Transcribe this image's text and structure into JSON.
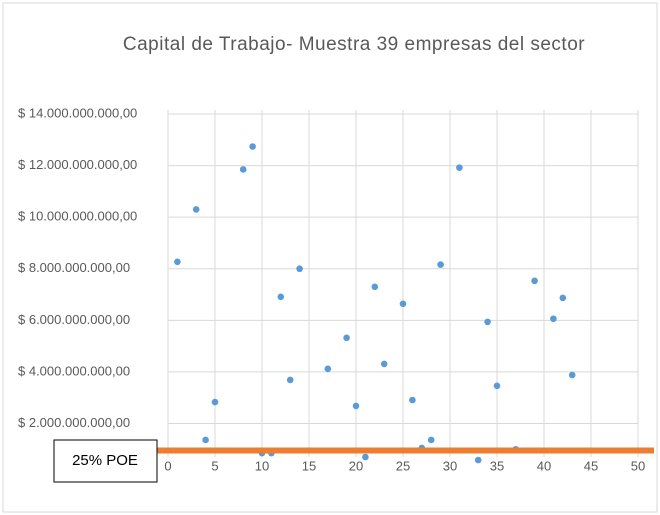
{
  "chart_data": {
    "type": "scatter",
    "title": "Capital de Trabajo- Muestra 39 empresas del sector",
    "color": "#5b9bd5",
    "x": [
      1,
      3,
      4,
      5,
      8,
      9,
      10,
      11,
      12,
      13,
      14,
      17,
      19,
      20,
      21,
      22,
      23,
      25,
      26,
      27,
      28,
      29,
      31,
      33,
      34,
      35,
      37,
      39,
      41,
      42,
      43
    ],
    "values": [
      8270000000,
      10300000000,
      1360000000,
      2830000000,
      11850000000,
      12740000000,
      850000000,
      850000000,
      6910000000,
      3690000000,
      8000000000,
      4120000000,
      5320000000,
      2680000000,
      700000000,
      7300000000,
      4310000000,
      6640000000,
      2910000000,
      1050000000,
      1360000000,
      8160000000,
      11920000000,
      580000000,
      5940000000,
      3460000000,
      1000000000,
      7530000000,
      6060000000,
      6870000000,
      3880000000
    ],
    "xlim": [
      0,
      50
    ],
    "xticks": [
      0,
      5,
      10,
      15,
      20,
      25,
      30,
      35,
      40,
      45,
      50
    ],
    "ylim": [
      700000000,
      14000000000
    ],
    "yticks": [
      {
        "value": 2000000000,
        "label": "$ 2.000.000.000,00"
      },
      {
        "value": 4000000000,
        "label": "$ 4.000.000.000,00"
      },
      {
        "value": 6000000000,
        "label": "$ 6.000.000.000,00"
      },
      {
        "value": 8000000000,
        "label": "$ 8.000.000.000,00"
      },
      {
        "value": 10000000000,
        "label": "$ 10.000.000.000,00"
      },
      {
        "value": 12000000000,
        "label": "$ 12.000.000.000,00"
      },
      {
        "value": 14000000000,
        "label": "$ 14.000.000.000,00"
      }
    ],
    "grid": true,
    "reference_line": {
      "value": 950000000,
      "label": "25% POE",
      "color": "#ed7d31"
    }
  }
}
